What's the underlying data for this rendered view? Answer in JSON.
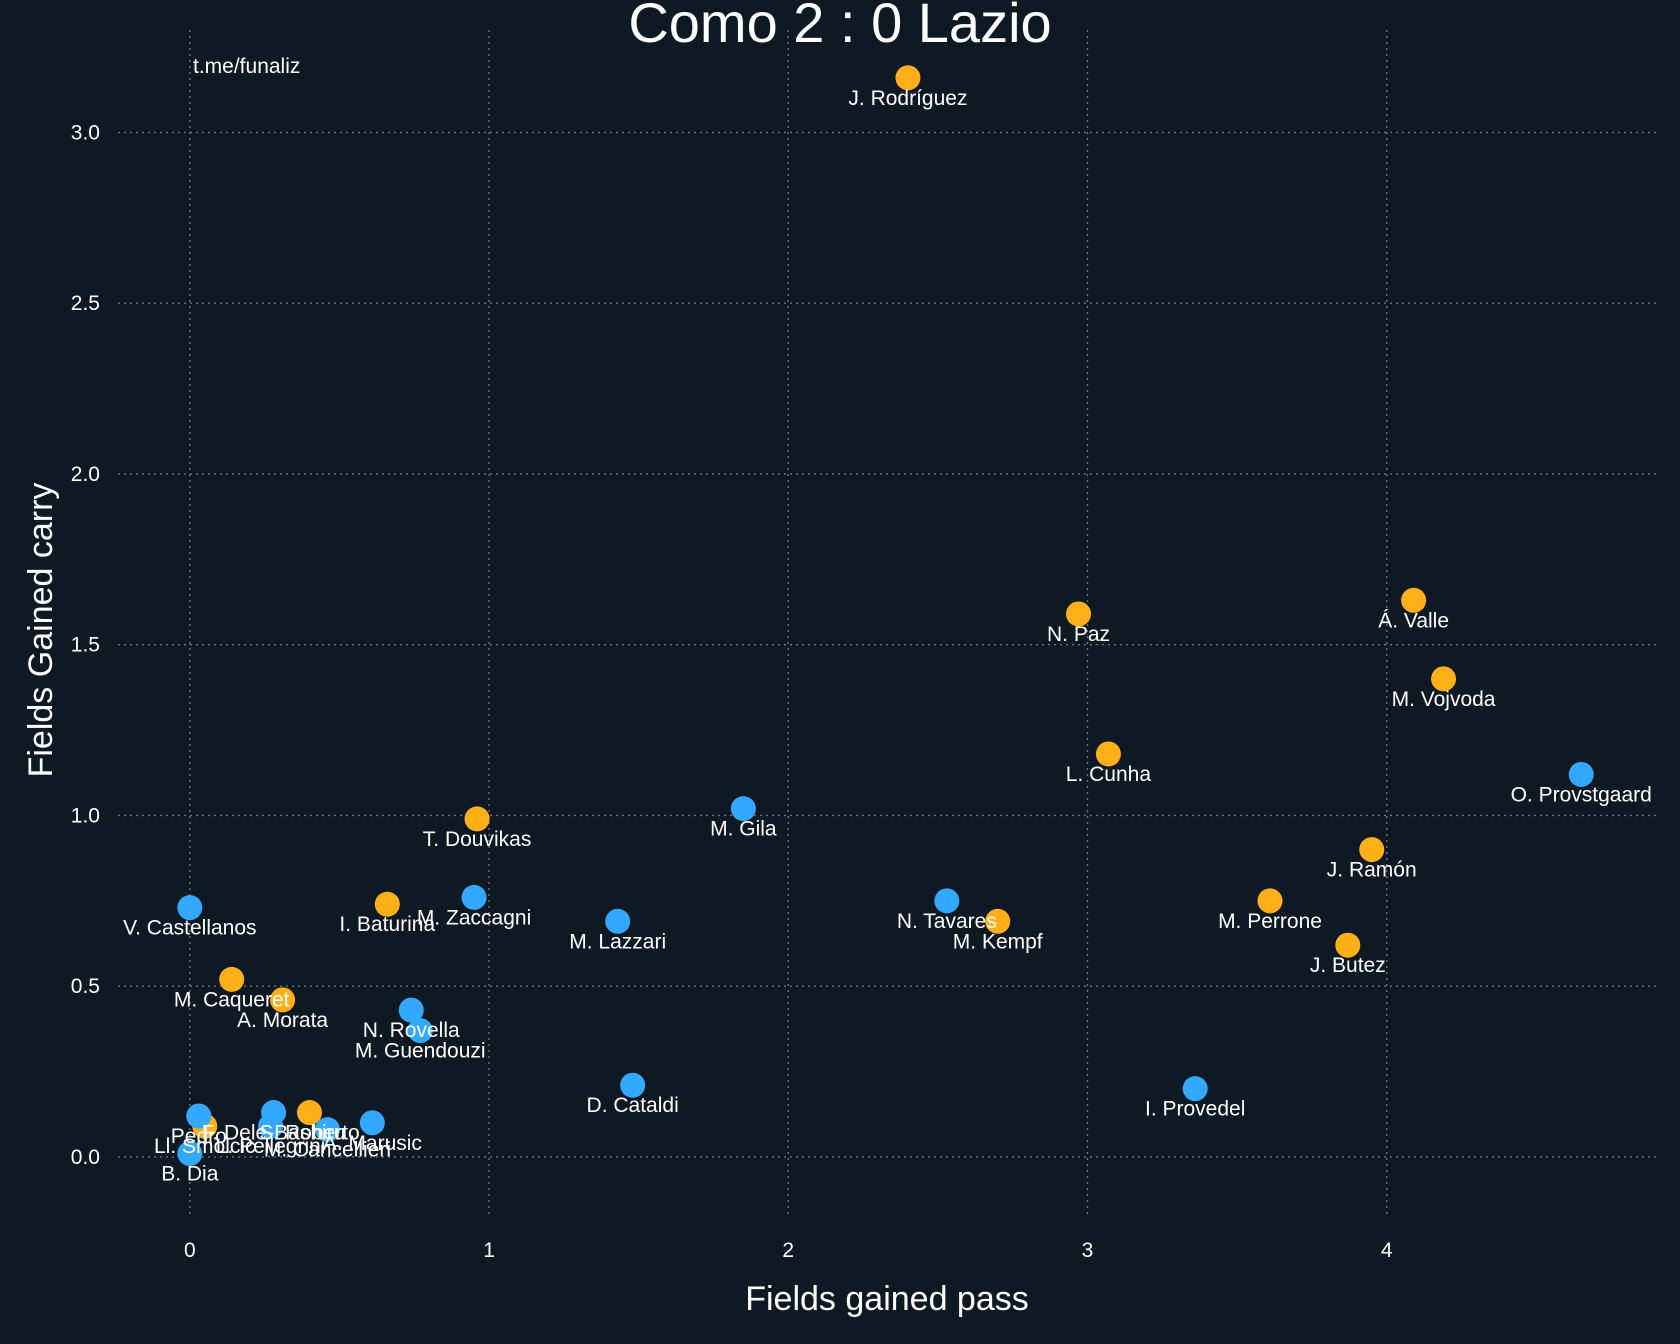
{
  "chart_data": {
    "type": "scatter",
    "title": "Como 2 : 0 Lazio",
    "xlabel": "Fields gained pass",
    "ylabel": "Fields Gained carry",
    "watermark": "t.me/funaliz",
    "xlim": [
      -0.24,
      4.9
    ],
    "ylim": [
      -0.17,
      3.3
    ],
    "xticks": [
      0,
      1,
      2,
      3,
      4
    ],
    "yticks": [
      0.0,
      0.5,
      1.0,
      1.5,
      2.0,
      2.5,
      3.0
    ],
    "xtick_labels": [
      "0",
      "1",
      "2",
      "3",
      "4"
    ],
    "ytick_labels": [
      "0.0",
      "0.5",
      "1.0",
      "1.5",
      "2.0",
      "2.5",
      "3.0"
    ],
    "grid": true,
    "colors": {
      "background": "#0f1924",
      "orange": "#ffb019",
      "blue": "#33a8ff",
      "text": "#ffffff",
      "grid": "#6b7480"
    },
    "series": [
      {
        "color": "#ffb019",
        "points": [
          {
            "label": "J. Rodríguez",
            "x": 2.4,
            "y": 3.16
          },
          {
            "label": "N. Paz",
            "x": 2.97,
            "y": 1.59
          },
          {
            "label": "Á. Valle",
            "x": 4.09,
            "y": 1.63
          },
          {
            "label": "M. Vojvoda",
            "x": 4.19,
            "y": 1.4
          },
          {
            "label": "L. Cunha",
            "x": 3.07,
            "y": 1.18
          },
          {
            "label": "J. Ramón",
            "x": 3.95,
            "y": 0.9
          },
          {
            "label": "M. Perrone",
            "x": 3.61,
            "y": 0.75
          },
          {
            "label": "J. Butez",
            "x": 3.87,
            "y": 0.62
          },
          {
            "label": "M. Kempf",
            "x": 2.7,
            "y": 0.69
          },
          {
            "label": "T. Douvikas",
            "x": 0.96,
            "y": 0.99
          },
          {
            "label": "I. Baturina",
            "x": 0.66,
            "y": 0.74
          },
          {
            "label": "M. Caqueret",
            "x": 0.14,
            "y": 0.52
          },
          {
            "label": "A. Morata",
            "x": 0.31,
            "y": 0.46
          },
          {
            "label": "S. Roberto",
            "x": 0.4,
            "y": 0.13
          },
          {
            "label": "Ll. Smolcic",
            "x": 0.05,
            "y": 0.09
          }
        ]
      },
      {
        "color": "#33a8ff",
        "points": [
          {
            "label": "O. Provstgaard",
            "x": 4.65,
            "y": 1.12
          },
          {
            "label": "M. Gila",
            "x": 1.85,
            "y": 1.02
          },
          {
            "label": "N. Tavares",
            "x": 2.53,
            "y": 0.75
          },
          {
            "label": "M. Lazzari",
            "x": 1.43,
            "y": 0.69
          },
          {
            "label": "V. Castellanos",
            "x": 0.0,
            "y": 0.73
          },
          {
            "label": "M. Zaccagni",
            "x": 0.95,
            "y": 0.76
          },
          {
            "label": "N. Rovella",
            "x": 0.74,
            "y": 0.43
          },
          {
            "label": "M. Guendouzi",
            "x": 0.77,
            "y": 0.37
          },
          {
            "label": "D. Cataldi",
            "x": 1.48,
            "y": 0.21
          },
          {
            "label": "I. Provedel",
            "x": 3.36,
            "y": 0.2
          },
          {
            "label": "F. Dele-Bashiru",
            "x": 0.28,
            "y": 0.13
          },
          {
            "label": "A. Marusic",
            "x": 0.61,
            "y": 0.1
          },
          {
            "label": "M. Cancellieri",
            "x": 0.46,
            "y": 0.08
          },
          {
            "label": "L. Pellegrini",
            "x": 0.27,
            "y": 0.09
          },
          {
            "label": "Pedro",
            "x": 0.03,
            "y": 0.12
          },
          {
            "label": "B. Dia",
            "x": 0.0,
            "y": 0.01
          }
        ]
      }
    ]
  }
}
